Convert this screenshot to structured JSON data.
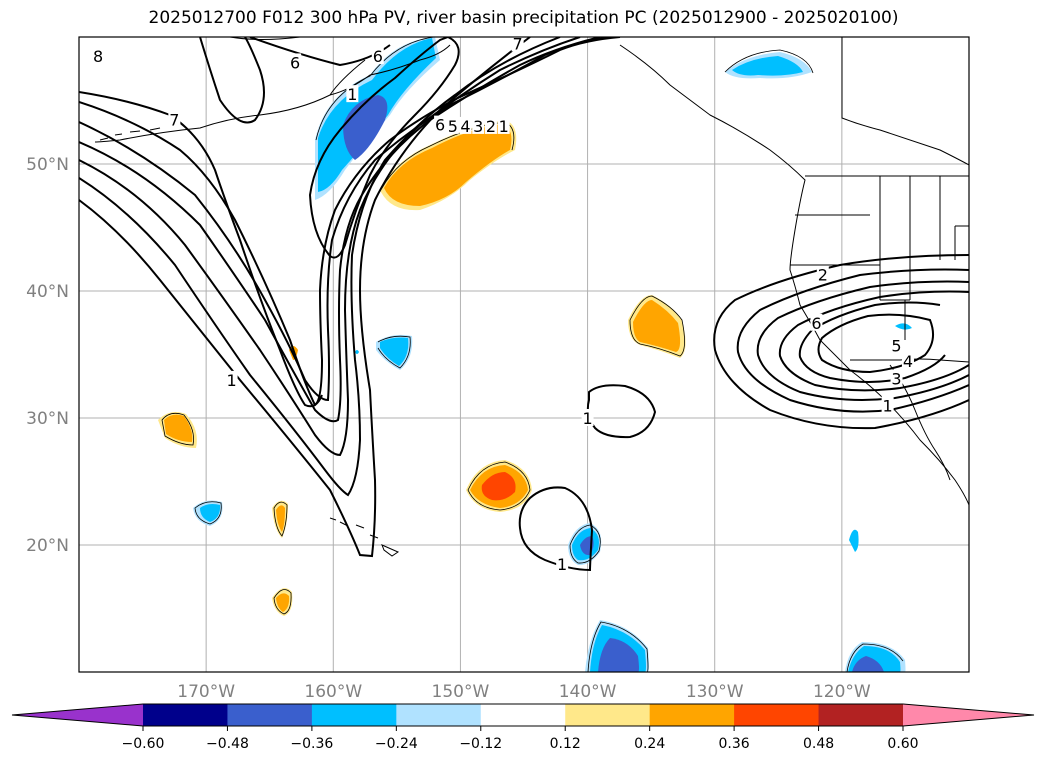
{
  "title": "2025012700 F012 300 hPa PV, river basin precipitation PC (2025012900 - 2025020100)",
  "map": {
    "lon_range": [
      -180,
      -110
    ],
    "lat_range": [
      10,
      60
    ],
    "gridline_color": "#b0b0b0",
    "coastline_color": "#000000"
  },
  "lat_labels": [
    {
      "lat": 50,
      "text": "50°N"
    },
    {
      "lat": 40,
      "text": "40°N"
    },
    {
      "lat": 30,
      "text": "30°N"
    },
    {
      "lat": 20,
      "text": "20°N"
    }
  ],
  "lon_labels": [
    {
      "lon": -170,
      "text": "170°W"
    },
    {
      "lon": -160,
      "text": "160°W"
    },
    {
      "lon": -150,
      "text": "150°W"
    },
    {
      "lon": -140,
      "text": "140°W"
    },
    {
      "lon": -130,
      "text": "130°W"
    },
    {
      "lon": -120,
      "text": "120°W"
    }
  ],
  "contour_labels": [
    {
      "text": "8",
      "lon": -178.5,
      "lat": 58.5
    },
    {
      "text": "7",
      "lon": -172.5,
      "lat": 53.5
    },
    {
      "text": "6",
      "lon": -163,
      "lat": 58
    },
    {
      "text": "7",
      "lon": -145.5,
      "lat": 59.5
    },
    {
      "text": "1",
      "lon": -158.5,
      "lat": 55.5
    },
    {
      "text": "6",
      "lon": -156.5,
      "lat": 58.5
    },
    {
      "text": "6",
      "lon": -151.6,
      "lat": 53.1
    },
    {
      "text": "5",
      "lon": -150.6,
      "lat": 53.0
    },
    {
      "text": "4",
      "lon": -149.6,
      "lat": 53.0
    },
    {
      "text": "3",
      "lon": -148.6,
      "lat": 53.0
    },
    {
      "text": "2",
      "lon": -147.6,
      "lat": 53.0
    },
    {
      "text": "1",
      "lon": -146.6,
      "lat": 53.0
    },
    {
      "text": "1",
      "lon": -168,
      "lat": 33
    },
    {
      "text": "1",
      "lon": -140,
      "lat": 30
    },
    {
      "text": "1",
      "lon": -142,
      "lat": 18.5
    },
    {
      "text": "2",
      "lon": -121.5,
      "lat": 41.3
    },
    {
      "text": "6",
      "lon": -122,
      "lat": 37.5
    },
    {
      "text": "5",
      "lon": -115.7,
      "lat": 35.7
    },
    {
      "text": "4",
      "lon": -114.8,
      "lat": 34.5
    },
    {
      "text": "3",
      "lon": -115.7,
      "lat": 33.1
    },
    {
      "text": "1",
      "lon": -116.4,
      "lat": 31.0
    }
  ],
  "colorbar": {
    "colors": [
      "#9932cc",
      "#00008b",
      "#3a5fcd",
      "#00bfff",
      "#b0e2ff",
      "#ffffff",
      "#ffe88a",
      "#ffa500",
      "#ff4500",
      "#b22222",
      "#ff88aa"
    ],
    "tick_labels": [
      "−0.60",
      "−0.48",
      "−0.36",
      "−0.24",
      "−0.12",
      "0.12",
      "0.24",
      "0.36",
      "0.48",
      "0.60"
    ]
  }
}
